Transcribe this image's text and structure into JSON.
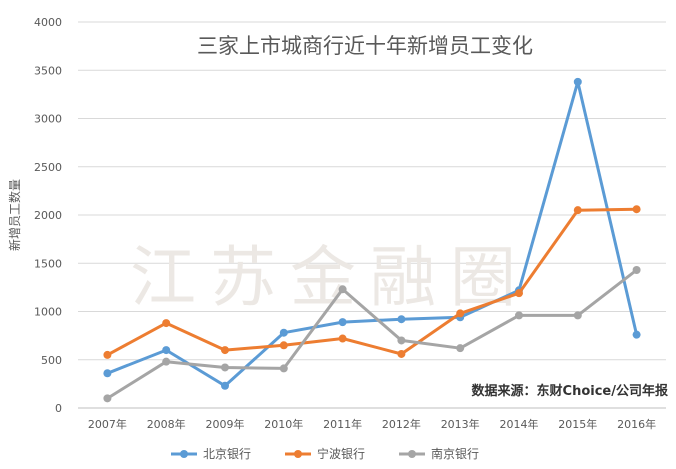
{
  "watermark": "江苏金融圈",
  "source_note": "数据来源：东财Choice/公司年报",
  "chart_data": {
    "type": "line",
    "title": "三家上市城商行近十年新增员工变化",
    "xlabel": "",
    "ylabel": "新增员工数量",
    "categories": [
      "2007年",
      "2008年",
      "2009年",
      "2010年",
      "2011年",
      "2012年",
      "2013年",
      "2014年",
      "2015年",
      "2016年"
    ],
    "ylim": [
      0,
      4000
    ],
    "yticks": [
      0,
      500,
      1000,
      1500,
      2000,
      2500,
      3000,
      3500,
      4000
    ],
    "grid": true,
    "legend_position": "bottom",
    "series": [
      {
        "name": "北京银行",
        "color": "#5b9bd5",
        "values": [
          360,
          600,
          230,
          780,
          890,
          920,
          940,
          1220,
          3380,
          760
        ]
      },
      {
        "name": "宁波银行",
        "color": "#ed7d31",
        "values": [
          550,
          880,
          600,
          650,
          720,
          560,
          980,
          1190,
          2050,
          2060
        ]
      },
      {
        "name": "南京银行",
        "color": "#a5a5a5",
        "values": [
          100,
          480,
          420,
          410,
          1230,
          700,
          620,
          960,
          960,
          1430
        ]
      }
    ]
  }
}
